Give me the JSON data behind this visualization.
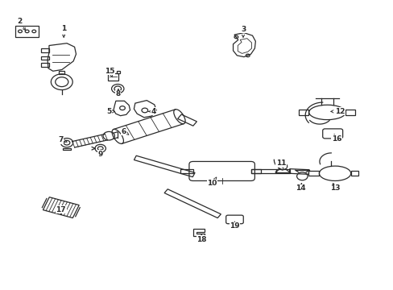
{
  "background_color": "#ffffff",
  "line_color": "#2a2a2a",
  "figsize": [
    4.89,
    3.6
  ],
  "dpi": 100,
  "labels": [
    [
      2,
      0.04,
      0.935,
      0.06,
      0.895
    ],
    [
      1,
      0.155,
      0.91,
      0.155,
      0.868
    ],
    [
      5,
      0.272,
      0.618,
      0.295,
      0.618
    ],
    [
      4,
      0.388,
      0.618,
      0.368,
      0.618
    ],
    [
      15,
      0.275,
      0.76,
      0.283,
      0.73
    ],
    [
      8,
      0.295,
      0.68,
      0.297,
      0.7
    ],
    [
      3,
      0.62,
      0.908,
      0.62,
      0.868
    ],
    [
      12,
      0.87,
      0.618,
      0.845,
      0.618
    ],
    [
      16,
      0.862,
      0.522,
      0.855,
      0.54
    ],
    [
      6,
      0.31,
      0.548,
      0.325,
      0.535
    ],
    [
      7,
      0.148,
      0.518,
      0.165,
      0.51
    ],
    [
      9,
      0.25,
      0.468,
      0.252,
      0.488
    ],
    [
      11,
      0.718,
      0.435,
      0.725,
      0.415
    ],
    [
      10,
      0.54,
      0.365,
      0.555,
      0.395
    ],
    [
      14,
      0.768,
      0.348,
      0.772,
      0.368
    ],
    [
      13,
      0.858,
      0.348,
      0.852,
      0.368
    ],
    [
      17,
      0.148,
      0.272,
      0.148,
      0.252
    ],
    [
      18,
      0.512,
      0.168,
      0.512,
      0.188
    ],
    [
      19,
      0.598,
      0.215,
      0.598,
      0.232
    ]
  ]
}
